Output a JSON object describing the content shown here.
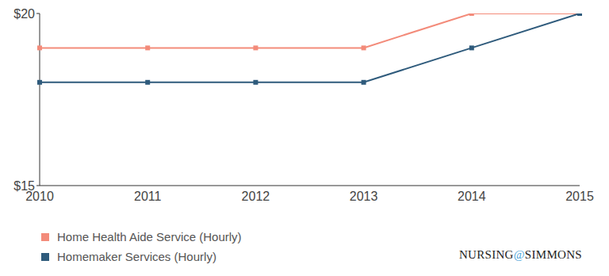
{
  "chart_data": {
    "type": "line",
    "categories": [
      "2010",
      "2011",
      "2012",
      "2013",
      "2014",
      "2015"
    ],
    "series": [
      {
        "name": "Home Health Aide Service (Hourly)",
        "color": "#f38b7a",
        "values": [
          19,
          19,
          19,
          19,
          20,
          20
        ],
        "marker": "square"
      },
      {
        "name": "Homemaker Services (Hourly)",
        "color": "#2f5b7c",
        "values": [
          18,
          18,
          18,
          18,
          19,
          20
        ],
        "marker": "square"
      }
    ],
    "ylim": [
      15,
      20
    ],
    "yticks": [
      {
        "value": 15,
        "label": "$15"
      },
      {
        "value": 20,
        "label": "$20"
      }
    ],
    "grid": false,
    "legend": "lower left",
    "annotations": [
      "NURSING@SIMMONS"
    ]
  }
}
